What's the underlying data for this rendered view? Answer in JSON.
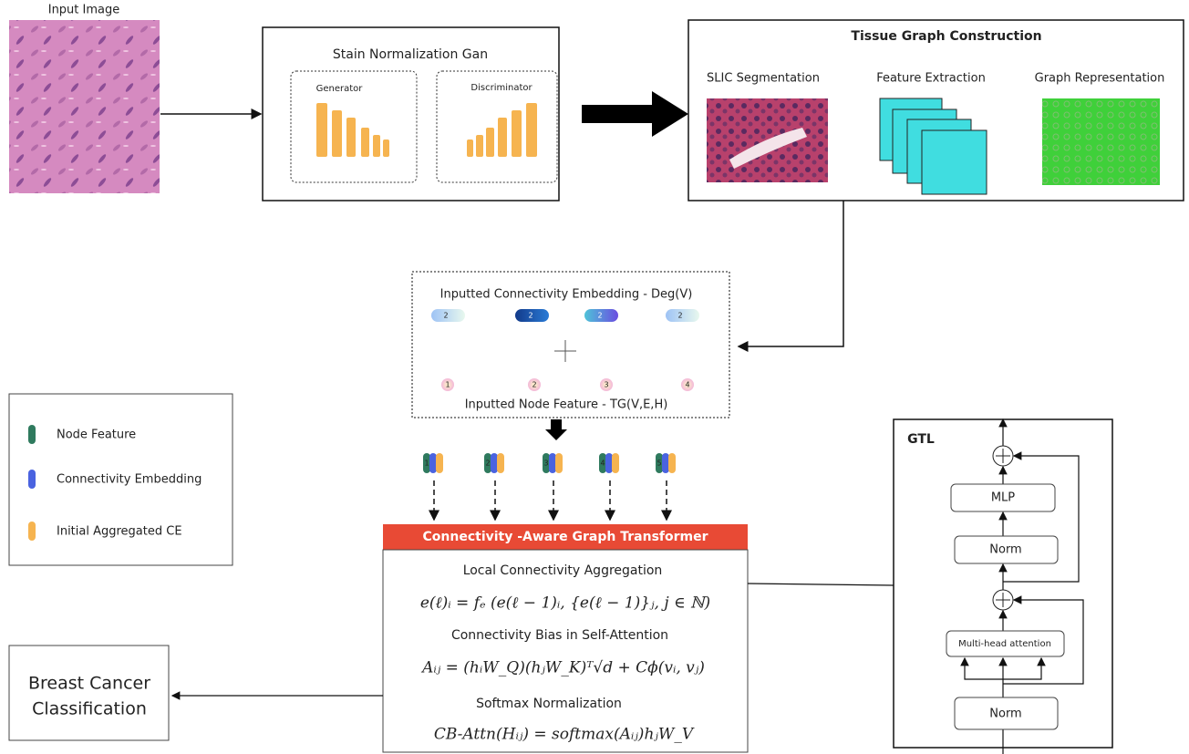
{
  "input": {
    "label": "Input Image"
  },
  "stain": {
    "title": "Stain Normalization Gan",
    "generator": "Generator",
    "discriminator": "Discriminator"
  },
  "tissue": {
    "title": "Tissue Graph Construction",
    "steps": [
      "SLIC Segmentation",
      "Feature Extraction",
      "Graph Representation"
    ]
  },
  "embedding": {
    "title": "Inputted Connectivity Embedding - Deg(V)",
    "degrees": [
      "2",
      "2",
      "2",
      "2"
    ],
    "node_feature_title": "Inputted Node Feature - TG(V,E,H)",
    "nodes": [
      "1",
      "2",
      "3",
      "4"
    ]
  },
  "tokens": [
    "1",
    "2",
    "3",
    "4",
    "5"
  ],
  "legend": [
    "Node Feature",
    "Connectivity Embedding",
    "Initial Aggregated CE"
  ],
  "transformer": {
    "title": "Connectivity -Aware Graph Transformer",
    "sections": [
      {
        "heading": "Local Connectivity Aggregation",
        "formula": "e(ℓ)ᵢ = fₑ (e(ℓ − 1)ᵢ, {e(ℓ − 1)}ⱼ, j ∈ ℕ)"
      },
      {
        "heading": "Connectivity Bias in Self-Attention",
        "formula": "Aᵢⱼ = (hᵢW_Q)(hⱼW_K)ᵀ√d + Cϕ(vᵢ, vⱼ)"
      },
      {
        "heading": "Softmax Normalization",
        "formula": "CB-Attn(Hᵢⱼ) = softmax(Aᵢⱼ)hⱼW_V"
      }
    ]
  },
  "output": {
    "lines": [
      "Breast Cancer",
      "Classification"
    ]
  },
  "gtl": {
    "title": "GTL",
    "blocks": [
      "MLP",
      "Norm",
      "Multi-head attention",
      "Norm"
    ]
  }
}
